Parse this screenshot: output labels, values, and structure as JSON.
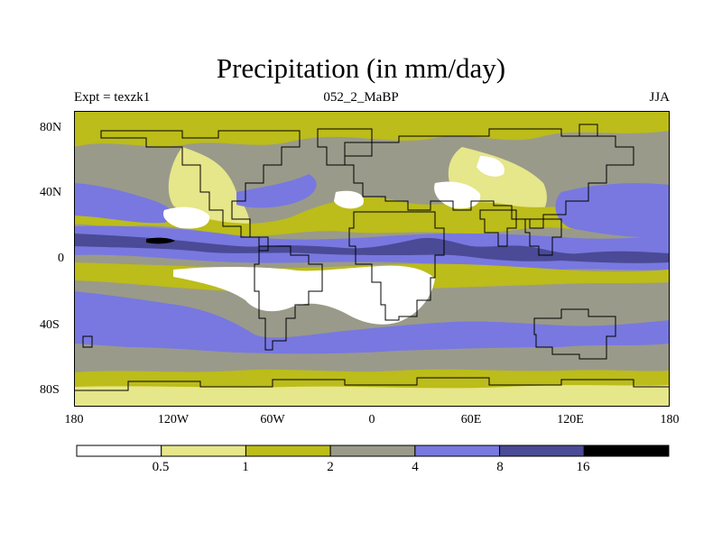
{
  "figure": {
    "title": "Precipitation (in mm/day)",
    "left_label": "Expt = texzk1",
    "center_label": "052_2_MaBP",
    "right_label": "JJA"
  },
  "axes": {
    "y_ticks": [
      "80N",
      "40N",
      "0",
      "40S",
      "80S"
    ],
    "x_ticks": [
      "180",
      "120W",
      "60W",
      "0",
      "60E",
      "120E",
      "180"
    ]
  },
  "colorbar": {
    "labels": [
      "0.5",
      "1",
      "2",
      "4",
      "8",
      "16"
    ],
    "colors": [
      "#ffffff",
      "#e6e68a",
      "#bcbc1a",
      "#9a9a8a",
      "#7878e0",
      "#4a4a96",
      "#000000"
    ]
  }
}
